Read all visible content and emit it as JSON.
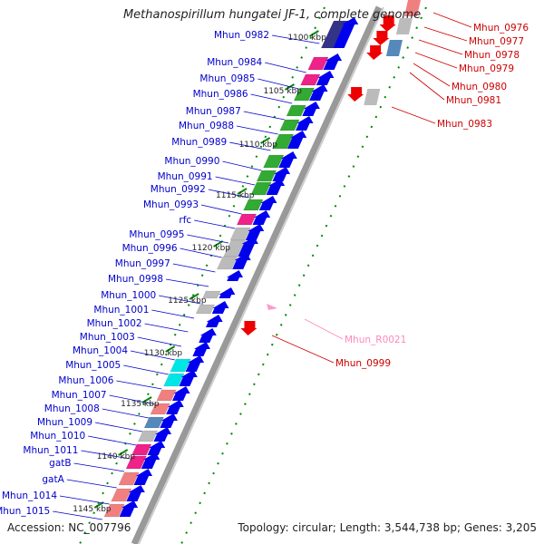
{
  "header": {
    "title": "Methanospirillum hungatei JF-1, complete genome"
  },
  "footer": {
    "accession": "Accession: NC_007796",
    "topology": "Topology: circular; Length: 3,544,738 bp; Genes: 3,205"
  },
  "colors": {
    "cds_forward": "#0000ee",
    "cds_reverse": "#ee0000",
    "rna": "#ff99cc",
    "backbone": "#999999",
    "tick": "#008800",
    "label_left": "#0000cc",
    "label_right": "#cc0000",
    "label_rna": "#ff88bb",
    "cog_green": "#33aa33",
    "cog_pink": "#ee2288",
    "cog_gray": "#bbbbbb",
    "cog_cyan": "#00e5e5",
    "cog_salmon": "#f08080",
    "cog_navy": "#333388",
    "cog_steel": "#5588bb"
  },
  "scale_labels": [
    "1100 kbp",
    "1105 kbp",
    "1110 kbp",
    "1115 kbp",
    "1120 kbp",
    "1125 kbp",
    "1130 kbp",
    "1135 kbp",
    "1140 kbp",
    "1145 kbp"
  ],
  "genes_left": [
    {
      "label": "Mhun_0982",
      "cog": "cog_navy"
    },
    {
      "label": "Mhun_0984",
      "cog": "cog_pink"
    },
    {
      "label": "Mhun_0985",
      "cog": "cog_pink"
    },
    {
      "label": "Mhun_0986",
      "cog": "cog_green"
    },
    {
      "label": "Mhun_0987",
      "cog": "cog_green"
    },
    {
      "label": "Mhun_0988",
      "cog": "cog_green"
    },
    {
      "label": "Mhun_0989",
      "cog": "cog_green"
    },
    {
      "label": "Mhun_0990",
      "cog": "cog_green"
    },
    {
      "label": "Mhun_0991",
      "cog": "cog_green"
    },
    {
      "label": "Mhun_0992",
      "cog": "cog_green"
    },
    {
      "label": "Mhun_0993",
      "cog": "cog_green"
    },
    {
      "label": "rfc",
      "cog": "cog_pink"
    },
    {
      "label": "Mhun_0995",
      "cog": "cog_gray"
    },
    {
      "label": "Mhun_0996",
      "cog": "cog_gray"
    },
    {
      "label": "Mhun_0997",
      "cog": "cog_gray"
    },
    {
      "label": "Mhun_0998",
      "cog": ""
    },
    {
      "label": "Mhun_1000",
      "cog": "cog_gray"
    },
    {
      "label": "Mhun_1001",
      "cog": "cog_gray"
    },
    {
      "label": "Mhun_1002",
      "cog": ""
    },
    {
      "label": "Mhun_1003",
      "cog": ""
    },
    {
      "label": "Mhun_1004",
      "cog": ""
    },
    {
      "label": "Mhun_1005",
      "cog": "cog_cyan"
    },
    {
      "label": "Mhun_1006",
      "cog": "cog_cyan"
    },
    {
      "label": "Mhun_1007",
      "cog": "cog_salmon"
    },
    {
      "label": "Mhun_1008",
      "cog": "cog_salmon"
    },
    {
      "label": "Mhun_1009",
      "cog": "cog_steel"
    },
    {
      "label": "Mhun_1010",
      "cog": "cog_gray"
    },
    {
      "label": "Mhun_1011",
      "cog": "cog_pink"
    },
    {
      "label": "gatB",
      "cog": "cog_pink"
    },
    {
      "label": "gatA",
      "cog": "cog_salmon"
    },
    {
      "label": "Mhun_1014",
      "cog": "cog_salmon"
    },
    {
      "label": "Mhun_1015",
      "cog": "cog_salmon"
    }
  ],
  "genes_right": [
    {
      "label": "Mhun_0976",
      "cog": "cog_salmon"
    },
    {
      "label": "Mhun_0977",
      "cog": "cog_gray"
    },
    {
      "label": "Mhun_0978",
      "cog": "cog_steel"
    },
    {
      "label": "Mhun_0979",
      "cog": ""
    },
    {
      "label": "Mhun_0980",
      "cog": ""
    },
    {
      "label": "Mhun_0981",
      "cog": ""
    },
    {
      "label": "Mhun_0983",
      "cog": "cog_gray"
    },
    {
      "label": "Mhun_R0021",
      "cog": "",
      "rna": true
    },
    {
      "label": "Mhun_0999",
      "cog": ""
    }
  ]
}
